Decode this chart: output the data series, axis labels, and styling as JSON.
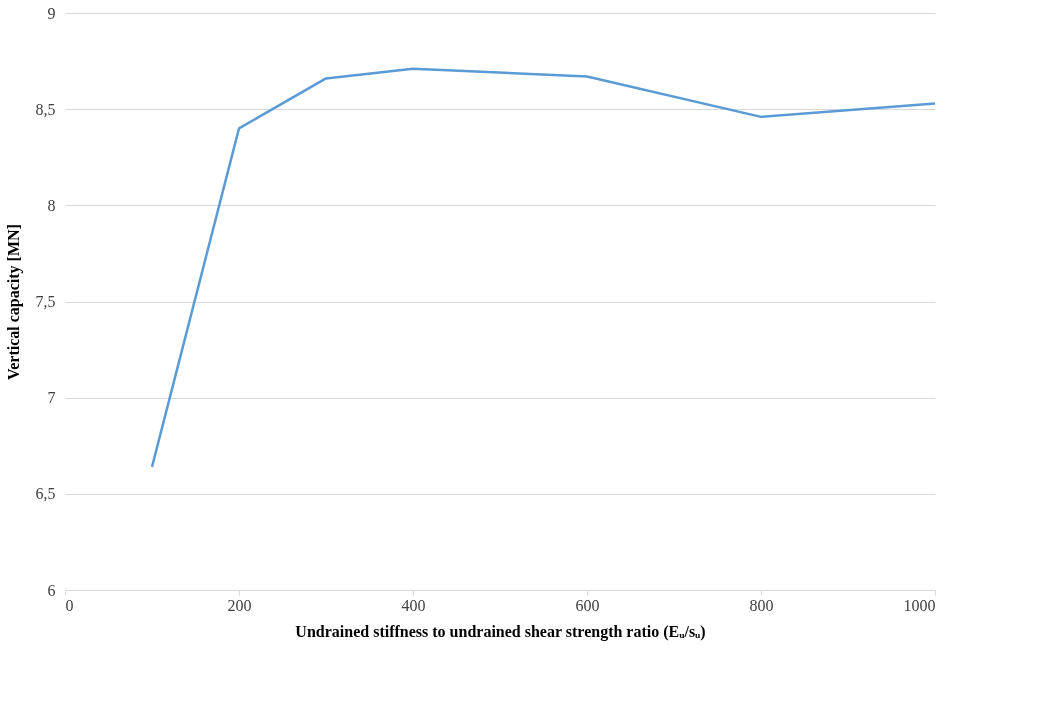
{
  "chart_data": {
    "type": "line",
    "xlabel": "Undrained  stiffness to undrained  shear strength ratio (Eᵤ/sᵤ)",
    "ylabel": "Vertical  capacity [MN]",
    "x": [
      100,
      200,
      300,
      400,
      600,
      800,
      1000
    ],
    "series": [
      {
        "color": "#5b9bd5",
        "values": [
          6.64,
          8.4,
          8.66,
          8.71,
          8.67,
          8.46,
          8.53
        ]
      }
    ],
    "xlim": [
      0,
      1000
    ],
    "xticks": [
      0,
      200,
      400,
      600,
      800,
      1000
    ],
    "ylim": [
      6,
      9
    ],
    "yticks": [
      6,
      {
        "value": 6.5,
        "label": "6,5"
      },
      7,
      {
        "value": 7.5,
        "label": "7,5"
      },
      8,
      {
        "value": 8.5,
        "label": "8,5"
      },
      9
    ],
    "grid": "y",
    "marker": "none",
    "line_style": "solid"
  }
}
